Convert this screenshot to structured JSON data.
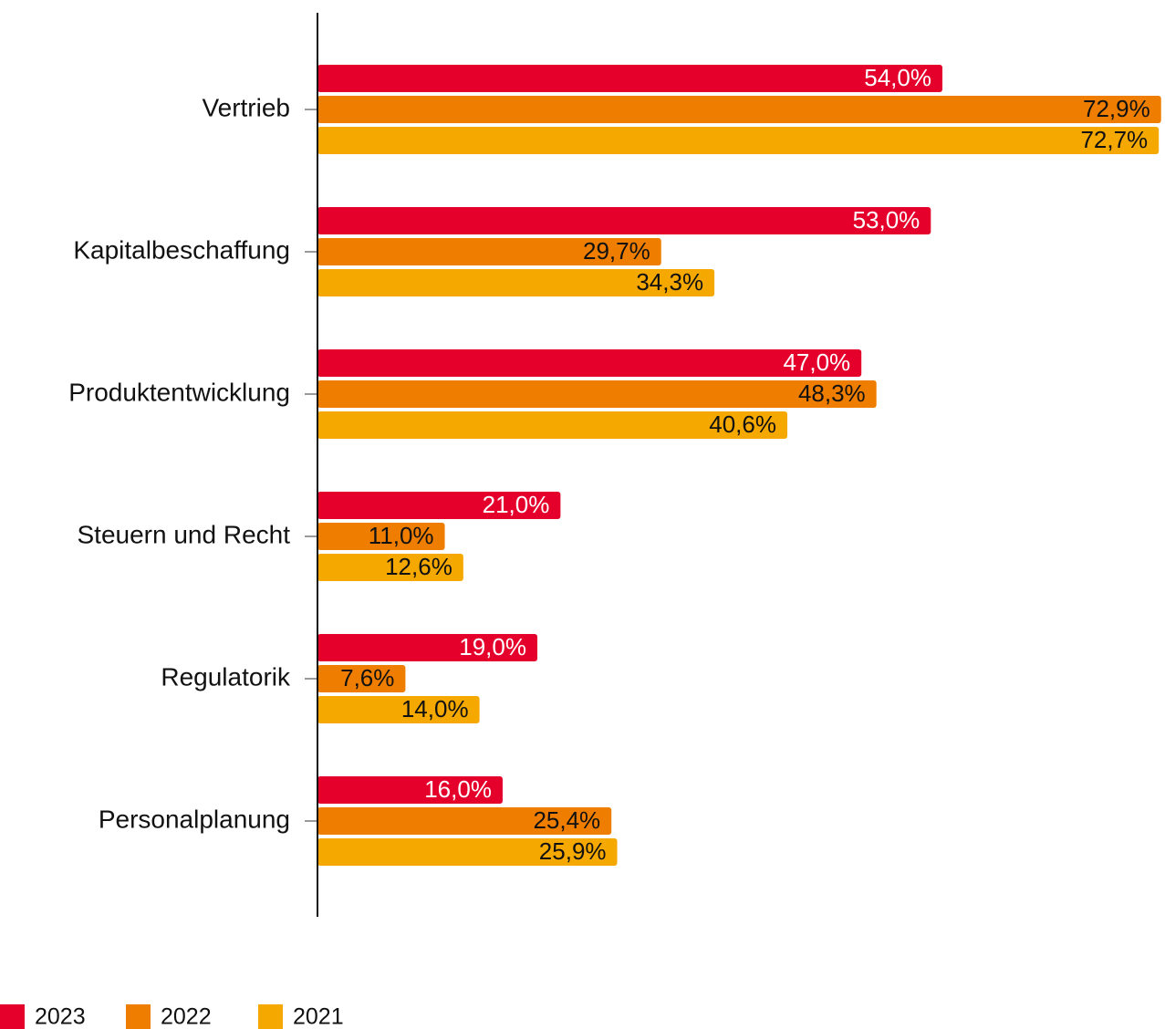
{
  "chart_data": {
    "type": "bar",
    "orientation": "horizontal",
    "categories": [
      "Vertrieb",
      "Kapitalbeschaffung",
      "Produktentwicklung",
      "Steuern und Recht",
      "Regulatorik",
      "Personalplanung"
    ],
    "series": [
      {
        "name": "2023",
        "color": "#e4002b",
        "values": [
          54.0,
          53.0,
          47.0,
          21.0,
          19.0,
          16.0
        ],
        "value_labels": [
          "54,0%",
          "53,0%",
          "47,0%",
          "21,0%",
          "19,0%",
          "16,0%"
        ]
      },
      {
        "name": "2022",
        "color": "#ef7d00",
        "values": [
          72.9,
          29.7,
          48.3,
          11.0,
          7.6,
          25.4
        ],
        "value_labels": [
          "72,9%",
          "29,7%",
          "48,3%",
          "11,0%",
          "7,6%",
          "25,4%"
        ]
      },
      {
        "name": "2021",
        "color": "#f5a800",
        "values": [
          72.7,
          34.3,
          40.6,
          12.6,
          14.0,
          25.9
        ],
        "value_labels": [
          "72,7%",
          "34,3%",
          "40,6%",
          "12,6%",
          "14,0%",
          "25,9%"
        ]
      }
    ],
    "xlim": [
      0,
      73
    ],
    "legend": "bottom-left"
  }
}
